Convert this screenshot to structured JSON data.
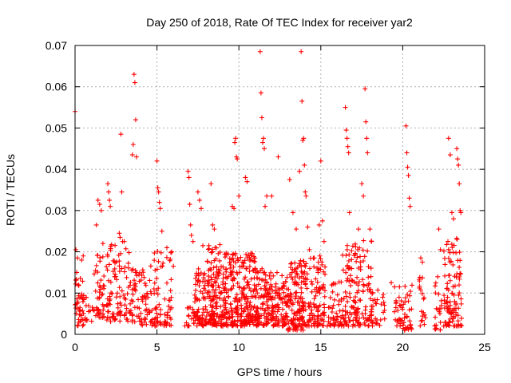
{
  "chart_data": {
    "type": "scatter",
    "title": "Day 250 of 2018, Rate Of TEC Index for receiver yar2",
    "xlabel": "GPS time / hours",
    "ylabel": "ROTI / TECUs",
    "xlim": [
      0,
      25
    ],
    "ylim": [
      0,
      0.07
    ],
    "xticks": [
      "0",
      "5",
      "10",
      "15",
      "20",
      "25"
    ],
    "yticks": [
      "0",
      "0.01",
      "0.02",
      "0.03",
      "0.04",
      "0.05",
      "0.06",
      "0.07"
    ],
    "xtick_values": [
      0,
      5,
      10,
      15,
      20,
      25
    ],
    "ytick_values": [
      0,
      0.01,
      0.02,
      0.03,
      0.04,
      0.05,
      0.06,
      0.07
    ],
    "grid": true,
    "marker": "plus",
    "color": "#ff0000",
    "series": [
      {
        "points": [
          [
            0.0,
            0.054
          ],
          [
            0.05,
            0.0205
          ],
          [
            0.1,
            0.015
          ],
          [
            0.15,
            0.0185
          ],
          [
            0.2,
            0.012
          ],
          [
            0.3,
            0.0065
          ],
          [
            0.4,
            0.018
          ],
          [
            0.5,
            0.019
          ],
          [
            1.3,
            0.0265
          ],
          [
            1.4,
            0.0325
          ],
          [
            1.5,
            0.0315
          ],
          [
            1.6,
            0.03
          ],
          [
            1.7,
            0.022
          ],
          [
            2.0,
            0.0365
          ],
          [
            2.05,
            0.0345
          ],
          [
            2.1,
            0.0325
          ],
          [
            2.15,
            0.031
          ],
          [
            2.7,
            0.0245
          ],
          [
            2.75,
            0.0235
          ],
          [
            2.8,
            0.0485
          ],
          [
            2.85,
            0.0345
          ],
          [
            2.9,
            0.0225
          ],
          [
            3.0,
            0.0225
          ],
          [
            3.5,
            0.0435
          ],
          [
            3.55,
            0.046
          ],
          [
            3.6,
            0.063
          ],
          [
            3.65,
            0.061
          ],
          [
            3.7,
            0.052
          ],
          [
            3.75,
            0.043
          ],
          [
            5.0,
            0.042
          ],
          [
            5.05,
            0.0355
          ],
          [
            5.1,
            0.0345
          ],
          [
            5.15,
            0.032
          ],
          [
            5.2,
            0.0305
          ],
          [
            5.3,
            0.025
          ],
          [
            5.9,
            0.02
          ],
          [
            6.0,
            0.0165
          ],
          [
            6.9,
            0.0395
          ],
          [
            6.95,
            0.038
          ],
          [
            7.0,
            0.0315
          ],
          [
            7.05,
            0.0265
          ],
          [
            7.1,
            0.024
          ],
          [
            7.2,
            0.0225
          ],
          [
            7.5,
            0.0345
          ],
          [
            7.6,
            0.0325
          ],
          [
            7.7,
            0.0305
          ],
          [
            7.8,
            0.0215
          ],
          [
            8.3,
            0.0365
          ],
          [
            8.4,
            0.0265
          ],
          [
            8.5,
            0.0255
          ],
          [
            9.6,
            0.031
          ],
          [
            9.7,
            0.0305
          ],
          [
            9.75,
            0.0465
          ],
          [
            9.8,
            0.0475
          ],
          [
            9.85,
            0.043
          ],
          [
            9.9,
            0.0425
          ],
          [
            10.0,
            0.0335
          ],
          [
            10.4,
            0.038
          ],
          [
            10.5,
            0.037
          ],
          [
            11.3,
            0.0685
          ],
          [
            11.35,
            0.0585
          ],
          [
            11.4,
            0.0525
          ],
          [
            11.45,
            0.0465
          ],
          [
            11.5,
            0.0475
          ],
          [
            11.55,
            0.045
          ],
          [
            11.6,
            0.031
          ],
          [
            11.7,
            0.0335
          ],
          [
            12.0,
            0.0335
          ],
          [
            12.4,
            0.043
          ],
          [
            13.1,
            0.0375
          ],
          [
            13.3,
            0.0295
          ],
          [
            13.5,
            0.0255
          ],
          [
            13.7,
            0.0395
          ],
          [
            13.8,
            0.0685
          ],
          [
            13.85,
            0.0565
          ],
          [
            13.9,
            0.047
          ],
          [
            13.95,
            0.0475
          ],
          [
            14.0,
            0.041
          ],
          [
            14.05,
            0.0345
          ],
          [
            14.1,
            0.0335
          ],
          [
            14.2,
            0.026
          ],
          [
            14.3,
            0.0205
          ],
          [
            14.6,
            0.0185
          ],
          [
            14.9,
            0.0265
          ],
          [
            15.0,
            0.042
          ],
          [
            15.1,
            0.0275
          ],
          [
            15.2,
            0.0225
          ],
          [
            16.5,
            0.055
          ],
          [
            16.55,
            0.0495
          ],
          [
            16.6,
            0.0475
          ],
          [
            16.65,
            0.0455
          ],
          [
            16.7,
            0.044
          ],
          [
            16.75,
            0.0295
          ],
          [
            17.3,
            0.0255
          ],
          [
            17.5,
            0.0365
          ],
          [
            17.6,
            0.0335
          ],
          [
            17.7,
            0.0595
          ],
          [
            17.75,
            0.0515
          ],
          [
            17.8,
            0.0475
          ],
          [
            17.85,
            0.044
          ],
          [
            18.0,
            0.0255
          ],
          [
            18.1,
            0.0225
          ],
          [
            19.3,
            0.0125
          ],
          [
            19.5,
            0.0115
          ],
          [
            19.8,
            0.0115
          ],
          [
            20.2,
            0.0505
          ],
          [
            20.25,
            0.044
          ],
          [
            20.3,
            0.0405
          ],
          [
            20.35,
            0.0385
          ],
          [
            20.4,
            0.033
          ],
          [
            20.45,
            0.031
          ],
          [
            21.1,
            0.0185
          ],
          [
            21.2,
            0.0175
          ],
          [
            22.2,
            0.0255
          ],
          [
            22.3,
            0.0205
          ],
          [
            22.8,
            0.0475
          ],
          [
            22.9,
            0.0435
          ],
          [
            23.0,
            0.0295
          ],
          [
            23.1,
            0.028
          ],
          [
            23.3,
            0.045
          ],
          [
            23.35,
            0.0425
          ],
          [
            23.4,
            0.041
          ],
          [
            23.45,
            0.0365
          ],
          [
            23.5,
            0.03
          ],
          [
            23.55,
            0.0295
          ]
        ]
      }
    ],
    "dense_clusters": [
      {
        "x_from": 0.0,
        "x_to": 0.6,
        "y_min": 0.002,
        "y_max": 0.014,
        "n": 40
      },
      {
        "x_from": 0.6,
        "x_to": 1.1,
        "y_min": 0.003,
        "y_max": 0.009,
        "n": 12
      },
      {
        "x_from": 1.1,
        "x_to": 1.8,
        "y_min": 0.004,
        "y_max": 0.021,
        "n": 45
      },
      {
        "x_from": 1.9,
        "x_to": 2.5,
        "y_min": 0.003,
        "y_max": 0.022,
        "n": 45
      },
      {
        "x_from": 2.5,
        "x_to": 3.3,
        "y_min": 0.003,
        "y_max": 0.021,
        "n": 45
      },
      {
        "x_from": 3.3,
        "x_to": 4.0,
        "y_min": 0.003,
        "y_max": 0.016,
        "n": 40
      },
      {
        "x_from": 4.0,
        "x_to": 4.8,
        "y_min": 0.002,
        "y_max": 0.017,
        "n": 45
      },
      {
        "x_from": 4.8,
        "x_to": 5.9,
        "y_min": 0.002,
        "y_max": 0.021,
        "n": 70
      },
      {
        "x_from": 6.7,
        "x_to": 7.3,
        "y_min": 0.002,
        "y_max": 0.007,
        "n": 20
      },
      {
        "x_from": 7.3,
        "x_to": 8.0,
        "y_min": 0.002,
        "y_max": 0.016,
        "n": 70
      },
      {
        "x_from": 8.0,
        "x_to": 9.0,
        "y_min": 0.002,
        "y_max": 0.022,
        "n": 140
      },
      {
        "x_from": 9.0,
        "x_to": 10.0,
        "y_min": 0.002,
        "y_max": 0.02,
        "n": 130
      },
      {
        "x_from": 10.0,
        "x_to": 11.0,
        "y_min": 0.002,
        "y_max": 0.02,
        "n": 130
      },
      {
        "x_from": 11.0,
        "x_to": 12.0,
        "y_min": 0.002,
        "y_max": 0.016,
        "n": 110
      },
      {
        "x_from": 12.0,
        "x_to": 13.0,
        "y_min": 0.002,
        "y_max": 0.015,
        "n": 100
      },
      {
        "x_from": 13.0,
        "x_to": 14.0,
        "y_min": 0.001,
        "y_max": 0.018,
        "n": 130
      },
      {
        "x_from": 14.0,
        "x_to": 15.3,
        "y_min": 0.002,
        "y_max": 0.019,
        "n": 110
      },
      {
        "x_from": 15.3,
        "x_to": 16.3,
        "y_min": 0.002,
        "y_max": 0.013,
        "n": 50
      },
      {
        "x_from": 16.3,
        "x_to": 17.2,
        "y_min": 0.002,
        "y_max": 0.022,
        "n": 80
      },
      {
        "x_from": 17.2,
        "x_to": 18.2,
        "y_min": 0.002,
        "y_max": 0.023,
        "n": 80
      },
      {
        "x_from": 18.3,
        "x_to": 18.9,
        "y_min": 0.002,
        "y_max": 0.011,
        "n": 20
      },
      {
        "x_from": 19.4,
        "x_to": 20.0,
        "y_min": 0.002,
        "y_max": 0.01,
        "n": 22
      },
      {
        "x_from": 20.0,
        "x_to": 20.6,
        "y_min": 0.001,
        "y_max": 0.012,
        "n": 30
      },
      {
        "x_from": 21.0,
        "x_to": 21.4,
        "y_min": 0.002,
        "y_max": 0.014,
        "n": 20
      },
      {
        "x_from": 21.9,
        "x_to": 22.4,
        "y_min": 0.001,
        "y_max": 0.014,
        "n": 22
      },
      {
        "x_from": 22.5,
        "x_to": 23.0,
        "y_min": 0.002,
        "y_max": 0.023,
        "n": 50
      },
      {
        "x_from": 23.0,
        "x_to": 23.6,
        "y_min": 0.002,
        "y_max": 0.024,
        "n": 55
      }
    ]
  }
}
